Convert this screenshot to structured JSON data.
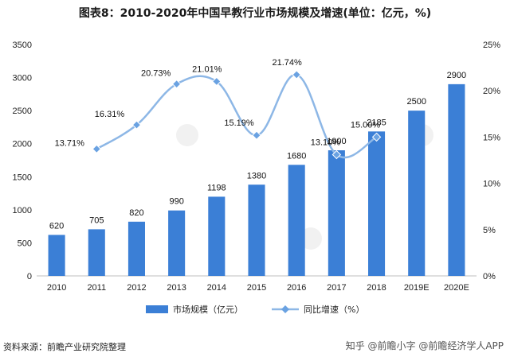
{
  "title": "图表8：2010-2020年中国早教行业市场规模及增速(单位：亿元，%)",
  "source": "资料来源：前瞻产业研究院整理",
  "watermark": "知乎 @前瞻小字 @前瞻经济学人APP",
  "colors": {
    "bar": "#3b7fd6",
    "line": "#8db7e6",
    "marker": "#6aa2e2",
    "grid": "#d9d9d9"
  },
  "chart_data": {
    "type": "bar",
    "categories": [
      "2010",
      "2011",
      "2012",
      "2013",
      "2014",
      "2015",
      "2016",
      "2017",
      "2018",
      "2019E",
      "2020E"
    ],
    "series": [
      {
        "name": "市场规模（亿元）",
        "type": "bar",
        "axis": "left",
        "values": [
          620,
          705,
          820,
          990,
          1198,
          1380,
          1680,
          1900,
          2185,
          2500,
          2900
        ]
      },
      {
        "name": "同比增速（%）",
        "type": "line",
        "axis": "right",
        "values": [
          null,
          13.71,
          16.31,
          20.73,
          21.01,
          15.19,
          21.74,
          13.1,
          15.0,
          null,
          null
        ],
        "labels": [
          null,
          "13.71%",
          "16.31%",
          "20.73%",
          "21.01%",
          "15.19%",
          "21.74%",
          "13.10%",
          "15.00%",
          null,
          null
        ]
      }
    ],
    "yleft": {
      "min": 0,
      "max": 3500,
      "ticks": [
        0,
        500,
        1000,
        1500,
        2000,
        2500,
        3000,
        3500
      ]
    },
    "yright": {
      "min": 0,
      "max": 25,
      "ticks": [
        "0%",
        "5%",
        "10%",
        "15%",
        "20%",
        "25%"
      ]
    },
    "legend": {
      "position": "bottom",
      "bar_label": "市场规模（亿元）",
      "line_label": "同比增速（%）"
    },
    "grid": false
  }
}
